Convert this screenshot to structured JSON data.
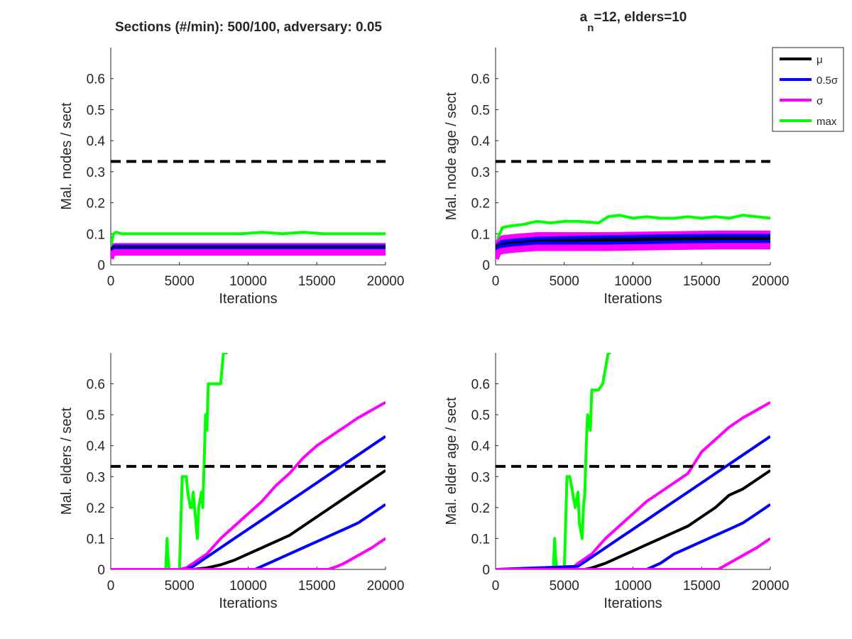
{
  "figure_title_left": "Sections (#/min): 500/100, adversary: 0.05",
  "figure_title_right_main": "a",
  "figure_title_right_sub": "n",
  "figure_title_right_rest": "=12, elders=10",
  "legend": {
    "entries": [
      {
        "label": "μ",
        "color": "#000000"
      },
      {
        "label": "0.5σ",
        "color": "#0000ff"
      },
      {
        "label": "σ",
        "color": "#ff00ff"
      },
      {
        "label": "max",
        "color": "#00ff00"
      }
    ]
  },
  "colors": {
    "mean": "#000000",
    "half_sigma": "#0000ff",
    "sigma": "#ff00ff",
    "max": "#00ff00",
    "threshold": "#000000"
  },
  "chart_data": [
    {
      "type": "line",
      "title": "",
      "xlabel": "Iterations",
      "ylabel": "Mal. nodes / sect",
      "xlim": [
        0,
        20000
      ],
      "ylim": [
        0,
        0.7
      ],
      "xticks": [
        0,
        5000,
        10000,
        15000,
        20000
      ],
      "yticks": [
        0,
        0.1,
        0.2,
        0.3,
        0.4,
        0.5,
        0.6
      ],
      "threshold": 0.333,
      "series": [
        {
          "name": "max",
          "x": [
            0,
            100,
            200,
            400,
            800,
            1500,
            2500,
            4000,
            5000,
            6500,
            8000,
            9500,
            11000,
            12500,
            14000,
            15500,
            17000,
            18500,
            20000
          ],
          "y": [
            0.03,
            0.08,
            0.1,
            0.105,
            0.1,
            0.1,
            0.1,
            0.1,
            0.1,
            0.1,
            0.1,
            0.1,
            0.105,
            0.1,
            0.105,
            0.1,
            0.1,
            0.1,
            0.1
          ]
        },
        {
          "name": "σ",
          "x": [
            0,
            100,
            300,
            20000
          ],
          "y": [
            0.03,
            0.045,
            0.06,
            0.06
          ]
        },
        {
          "name": "0.5σ",
          "x": [
            0,
            100,
            300,
            20000
          ],
          "y": [
            0.03,
            0.045,
            0.055,
            0.055
          ]
        },
        {
          "name": "μ",
          "x": [
            0,
            100,
            300,
            20000
          ],
          "y": [
            0.03,
            0.045,
            0.05,
            0.05
          ]
        },
        {
          "name": "0.5σ",
          "x": [
            0,
            100,
            300,
            20000
          ],
          "y": [
            0.03,
            0.04,
            0.045,
            0.045
          ]
        },
        {
          "name": "σ",
          "x": [
            0,
            100,
            300,
            20000
          ],
          "y": [
            0.02,
            0.035,
            0.04,
            0.04
          ]
        }
      ]
    },
    {
      "type": "line",
      "title": "",
      "xlabel": "Iterations",
      "ylabel": "Mal. node age / sect",
      "xlim": [
        0,
        20000
      ],
      "ylim": [
        0,
        0.7
      ],
      "xticks": [
        0,
        5000,
        10000,
        15000,
        20000
      ],
      "yticks": [
        0,
        0.1,
        0.2,
        0.3,
        0.4,
        0.5,
        0.6
      ],
      "threshold": 0.333,
      "series": [
        {
          "name": "max",
          "x": [
            0,
            200,
            500,
            1000,
            2000,
            3000,
            4000,
            5000,
            6000,
            7500,
            8200,
            9000,
            10000,
            11000,
            12000,
            13000,
            14000,
            15000,
            16000,
            17000,
            18000,
            19000,
            20000
          ],
          "y": [
            0.03,
            0.09,
            0.12,
            0.125,
            0.13,
            0.14,
            0.135,
            0.14,
            0.14,
            0.135,
            0.155,
            0.16,
            0.15,
            0.155,
            0.15,
            0.15,
            0.155,
            0.15,
            0.155,
            0.15,
            0.16,
            0.155,
            0.15
          ]
        },
        {
          "name": "σ",
          "x": [
            0,
            200,
            500,
            1500,
            3000,
            8000,
            16000,
            20000
          ],
          "y": [
            0.03,
            0.07,
            0.085,
            0.09,
            0.095,
            0.095,
            0.1,
            0.1
          ]
        },
        {
          "name": "0.5σ",
          "x": [
            0,
            200,
            500,
            1500,
            3000,
            8000,
            16000,
            20000
          ],
          "y": [
            0.03,
            0.06,
            0.07,
            0.075,
            0.08,
            0.085,
            0.09,
            0.09
          ]
        },
        {
          "name": "μ",
          "x": [
            0,
            200,
            500,
            1500,
            3000,
            8000,
            16000,
            20000
          ],
          "y": [
            0.02,
            0.055,
            0.06,
            0.065,
            0.07,
            0.075,
            0.08,
            0.08
          ]
        },
        {
          "name": "0.5σ",
          "x": [
            0,
            200,
            500,
            1500,
            3000,
            8000,
            16000,
            20000
          ],
          "y": [
            0.02,
            0.05,
            0.055,
            0.06,
            0.065,
            0.065,
            0.07,
            0.07
          ]
        },
        {
          "name": "σ",
          "x": [
            0,
            200,
            500,
            1500,
            3000,
            8000,
            16000,
            20000
          ],
          "y": [
            0.02,
            0.04,
            0.045,
            0.05,
            0.055,
            0.055,
            0.06,
            0.06
          ]
        }
      ]
    },
    {
      "type": "line",
      "title": "",
      "xlabel": "Iterations",
      "ylabel": "Mal. elders / sect",
      "xlim": [
        0,
        20000
      ],
      "ylim": [
        0,
        0.7
      ],
      "xticks": [
        0,
        5000,
        10000,
        15000,
        20000
      ],
      "yticks": [
        0,
        0.1,
        0.2,
        0.3,
        0.4,
        0.5,
        0.6
      ],
      "threshold": 0.333,
      "series": [
        {
          "name": "max",
          "x": [
            0,
            4000,
            4100,
            4150,
            4250,
            4300,
            5000,
            5100,
            5200,
            5500,
            5600,
            5800,
            5900,
            6000,
            6200,
            6300,
            6400,
            6600,
            6700,
            6800,
            6900,
            7000,
            7100,
            7500,
            7800,
            8000,
            8200,
            8400,
            8500
          ],
          "y": [
            0,
            0,
            0.1,
            0.05,
            0,
            0,
            0,
            0.15,
            0.3,
            0.3,
            0.25,
            0.2,
            0.2,
            0.25,
            0.15,
            0.1,
            0.2,
            0.25,
            0.2,
            0.35,
            0.5,
            0.45,
            0.6,
            0.6,
            0.6,
            0.6,
            0.7,
            0.7,
            0.7
          ]
        },
        {
          "name": "σ",
          "x": [
            0,
            5000,
            5500,
            6000,
            7000,
            8000,
            9000,
            10000,
            11000,
            12000,
            13000,
            14000,
            15000,
            16000,
            17000,
            18000,
            19000,
            20000
          ],
          "y": [
            0,
            0,
            0.005,
            0.02,
            0.05,
            0.1,
            0.14,
            0.18,
            0.22,
            0.27,
            0.31,
            0.36,
            0.4,
            0.43,
            0.46,
            0.49,
            0.515,
            0.54
          ]
        },
        {
          "name": "0.5σ",
          "x": [
            0,
            5500,
            6000,
            7000,
            8000,
            9000,
            10000,
            11000,
            12000,
            13000,
            14000,
            15000,
            16000,
            17000,
            18000,
            19000,
            20000
          ],
          "y": [
            0,
            0,
            0.01,
            0.04,
            0.07,
            0.1,
            0.13,
            0.16,
            0.19,
            0.22,
            0.25,
            0.28,
            0.31,
            0.34,
            0.37,
            0.4,
            0.43
          ]
        },
        {
          "name": "μ",
          "x": [
            0,
            6000,
            7000,
            8000,
            9000,
            10000,
            11000,
            12000,
            13000,
            14000,
            15000,
            16000,
            17000,
            18000,
            19000,
            20000
          ],
          "y": [
            0,
            0,
            0.005,
            0.015,
            0.03,
            0.05,
            0.07,
            0.09,
            0.11,
            0.14,
            0.17,
            0.2,
            0.23,
            0.26,
            0.29,
            0.32
          ]
        },
        {
          "name": "0.5σ",
          "x": [
            0,
            10500,
            11000,
            12000,
            13000,
            14000,
            15000,
            16000,
            17000,
            18000,
            19000,
            20000
          ],
          "y": [
            0,
            0,
            0.01,
            0.03,
            0.05,
            0.07,
            0.09,
            0.11,
            0.13,
            0.15,
            0.18,
            0.21
          ]
        },
        {
          "name": "σ",
          "x": [
            0,
            15800,
            16500,
            17000,
            18000,
            19000,
            20000
          ],
          "y": [
            0,
            0,
            0.01,
            0.02,
            0.045,
            0.07,
            0.1
          ]
        }
      ]
    },
    {
      "type": "line",
      "title": "",
      "xlabel": "Iterations",
      "ylabel": "Mal. elder age / sect",
      "xlim": [
        0,
        20000
      ],
      "ylim": [
        0,
        0.7
      ],
      "xticks": [
        0,
        5000,
        10000,
        15000,
        20000
      ],
      "yticks": [
        0,
        0.1,
        0.2,
        0.3,
        0.4,
        0.5,
        0.6
      ],
      "threshold": 0.333,
      "series": [
        {
          "name": "max",
          "x": [
            0,
            4200,
            4300,
            4350,
            4450,
            5000,
            5100,
            5200,
            5400,
            5600,
            5800,
            6000,
            6100,
            6300,
            6400,
            6500,
            6600,
            6700,
            6900,
            7000,
            7500,
            7800,
            8000,
            8200,
            8400
          ],
          "y": [
            0,
            0,
            0.1,
            0.05,
            0,
            0,
            0.15,
            0.3,
            0.3,
            0.25,
            0.2,
            0.25,
            0.15,
            0.1,
            0.2,
            0.25,
            0.4,
            0.5,
            0.45,
            0.58,
            0.58,
            0.6,
            0.65,
            0.7,
            0.7
          ]
        },
        {
          "name": "σ",
          "x": [
            0,
            5500,
            6000,
            7000,
            8000,
            9000,
            10000,
            11000,
            12000,
            13000,
            14000,
            15000,
            16000,
            17000,
            18000,
            19000,
            20000
          ],
          "y": [
            0,
            0,
            0.02,
            0.05,
            0.1,
            0.14,
            0.18,
            0.22,
            0.25,
            0.28,
            0.31,
            0.38,
            0.42,
            0.46,
            0.49,
            0.515,
            0.54
          ]
        },
        {
          "name": "0.5σ",
          "x": [
            0,
            6000,
            7000,
            8000,
            9000,
            10000,
            11000,
            12000,
            13000,
            14000,
            15000,
            16000,
            17000,
            18000,
            19000,
            20000
          ],
          "y": [
            0,
            0.01,
            0.04,
            0.07,
            0.1,
            0.13,
            0.16,
            0.19,
            0.22,
            0.25,
            0.28,
            0.31,
            0.34,
            0.37,
            0.4,
            0.43
          ]
        },
        {
          "name": "μ",
          "x": [
            0,
            6500,
            7000,
            8000,
            9000,
            10000,
            11000,
            12000,
            13000,
            14000,
            15000,
            16000,
            17000,
            18000,
            19000,
            20000
          ],
          "y": [
            0,
            0,
            0.005,
            0.02,
            0.04,
            0.06,
            0.08,
            0.1,
            0.12,
            0.14,
            0.17,
            0.2,
            0.24,
            0.26,
            0.29,
            0.32
          ]
        },
        {
          "name": "0.5σ",
          "x": [
            0,
            11000,
            12000,
            13000,
            14000,
            15000,
            16000,
            17000,
            18000,
            19000,
            20000
          ],
          "y": [
            0,
            0,
            0.02,
            0.05,
            0.07,
            0.09,
            0.11,
            0.13,
            0.15,
            0.18,
            0.21
          ]
        },
        {
          "name": "σ",
          "x": [
            0,
            16200,
            17000,
            18000,
            19000,
            20000
          ],
          "y": [
            0,
            0,
            0.02,
            0.045,
            0.07,
            0.1
          ]
        }
      ]
    }
  ]
}
